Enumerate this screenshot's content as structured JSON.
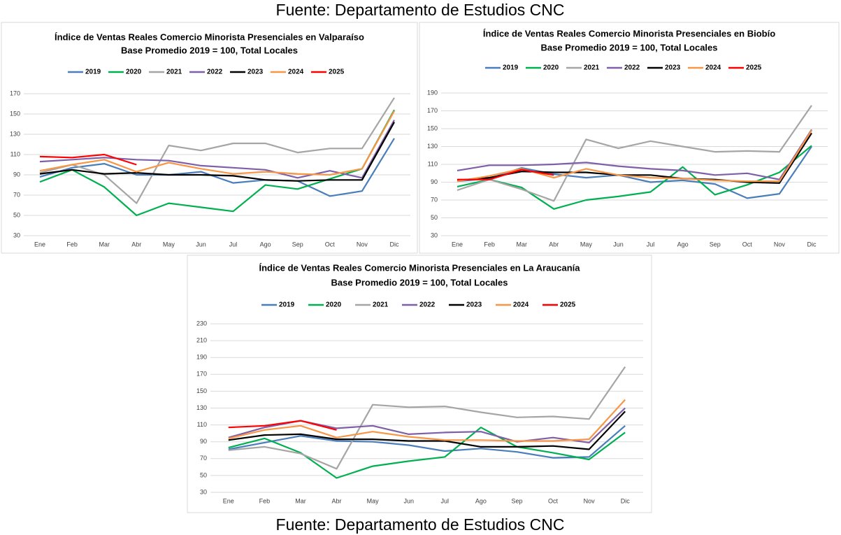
{
  "header": {
    "source": "Fuente: Departamento de Estudios CNC"
  },
  "footer": {
    "source": "Fuente: Departamento de Estudios CNC"
  },
  "chart_data": [
    {
      "type": "line",
      "title": "Índice de Ventas Reales Comercio Minorista Presenciales en Valparaíso",
      "subtitle": "Base Promedio 2019 = 100, Total Locales",
      "categories": [
        "Ene",
        "Feb",
        "Mar",
        "Abr",
        "May",
        "Jun",
        "Jul",
        "Ago",
        "Sep",
        "Oct",
        "Nov",
        "Dic"
      ],
      "ylim": [
        30,
        170
      ],
      "yticks": [
        30,
        50,
        70,
        90,
        110,
        130,
        150,
        170
      ],
      "grid": true,
      "legend": "top",
      "series": [
        {
          "name": "2019",
          "color": "#4a7ebb",
          "values": [
            88,
            97,
            101,
            90,
            90,
            93,
            82,
            85,
            84,
            69,
            74,
            126
          ]
        },
        {
          "name": "2020",
          "color": "#00b050",
          "values": [
            83,
            95,
            78,
            50,
            62,
            58,
            54,
            80,
            76,
            86,
            96,
            154
          ]
        },
        {
          "name": "2021",
          "color": "#a5a5a5",
          "values": [
            92,
            100,
            90,
            62,
            119,
            114,
            121,
            121,
            112,
            116,
            116,
            166
          ]
        },
        {
          "name": "2022",
          "color": "#7f5fa8",
          "values": [
            103,
            105,
            107,
            105,
            104,
            99,
            97,
            95,
            87,
            94,
            87,
            144
          ]
        },
        {
          "name": "2023",
          "color": "#000000",
          "values": [
            91,
            95,
            91,
            92,
            90,
            90,
            89,
            85,
            84,
            85,
            85,
            142
          ]
        },
        {
          "name": "2024",
          "color": "#f79646",
          "values": [
            94,
            100,
            105,
            93,
            102,
            96,
            91,
            93,
            91,
            90,
            96,
            153
          ]
        },
        {
          "name": "2025",
          "color": "#ff0000",
          "values": [
            108,
            107,
            110,
            100,
            null,
            null,
            null,
            null,
            null,
            null,
            null,
            null
          ]
        }
      ]
    },
    {
      "type": "line",
      "title": "Índice de Ventas Reales Comercio Minorista Presenciales en Biobío",
      "subtitle": "Base Promedio 2019 = 100, Total Locales",
      "categories": [
        "Ene",
        "Feb",
        "Mar",
        "Abr",
        "May",
        "Jun",
        "Jul",
        "Ago",
        "Sep",
        "Oct",
        "Nov",
        "Dic"
      ],
      "ylim": [
        30,
        190
      ],
      "yticks": [
        30,
        50,
        70,
        90,
        110,
        130,
        150,
        170,
        190
      ],
      "grid": true,
      "legend": "top",
      "series": [
        {
          "name": "2019",
          "color": "#4a7ebb",
          "values": [
            91,
            94,
            106,
            99,
            95,
            98,
            90,
            92,
            88,
            72,
            77,
            130
          ]
        },
        {
          "name": "2020",
          "color": "#00b050",
          "values": [
            85,
            93,
            84,
            60,
            70,
            74,
            79,
            107,
            76,
            87,
            101,
            131
          ]
        },
        {
          "name": "2021",
          "color": "#a5a5a5",
          "values": [
            81,
            93,
            82,
            69,
            138,
            128,
            136,
            130,
            124,
            125,
            124,
            176
          ]
        },
        {
          "name": "2022",
          "color": "#7f5fa8",
          "values": [
            103,
            109,
            109,
            110,
            112,
            108,
            105,
            103,
            98,
            100,
            93,
            149
          ]
        },
        {
          "name": "2023",
          "color": "#000000",
          "values": [
            92,
            95,
            102,
            101,
            101,
            98,
            98,
            94,
            93,
            90,
            89,
            145
          ]
        },
        {
          "name": "2024",
          "color": "#f79646",
          "values": [
            91,
            97,
            105,
            95,
            105,
            98,
            95,
            94,
            92,
            91,
            91,
            148
          ]
        },
        {
          "name": "2025",
          "color": "#ff0000",
          "values": [
            93,
            93,
            104,
            98,
            null,
            null,
            null,
            null,
            null,
            null,
            null,
            null
          ]
        }
      ]
    },
    {
      "type": "line",
      "title": "Índice de Ventas Reales Comercio Minorista Presenciales en La Araucanía",
      "subtitle": "Base Promedio 2019 = 100, Total Locales",
      "categories": [
        "Ene",
        "Feb",
        "Mar",
        "Abr",
        "May",
        "Jun",
        "Jul",
        "Ago",
        "Sep",
        "Oct",
        "Nov",
        "Dic"
      ],
      "ylim": [
        30,
        230
      ],
      "yticks": [
        30,
        50,
        70,
        90,
        110,
        130,
        150,
        170,
        190,
        210,
        230
      ],
      "grid": true,
      "legend": "top",
      "series": [
        {
          "name": "2019",
          "color": "#4a7ebb",
          "values": [
            81,
            89,
            97,
            91,
            90,
            86,
            79,
            82,
            78,
            71,
            72,
            109
          ]
        },
        {
          "name": "2020",
          "color": "#00b050",
          "values": [
            83,
            94,
            77,
            47,
            61,
            67,
            72,
            107,
            84,
            77,
            69,
            101
          ]
        },
        {
          "name": "2021",
          "color": "#a5a5a5",
          "values": [
            80,
            84,
            76,
            58,
            134,
            131,
            132,
            125,
            119,
            120,
            117,
            179
          ]
        },
        {
          "name": "2022",
          "color": "#7f5fa8",
          "values": [
            95,
            107,
            115,
            106,
            109,
            99,
            101,
            102,
            90,
            95,
            89,
            130
          ]
        },
        {
          "name": "2023",
          "color": "#000000",
          "values": [
            92,
            98,
            99,
            93,
            93,
            91,
            91,
            84,
            84,
            85,
            81,
            126
          ]
        },
        {
          "name": "2024",
          "color": "#f79646",
          "values": [
            94,
            104,
            109,
            95,
            102,
            96,
            92,
            92,
            91,
            91,
            93,
            140
          ]
        },
        {
          "name": "2025",
          "color": "#ff0000",
          "values": [
            107,
            109,
            115,
            104,
            null,
            null,
            null,
            null,
            null,
            null,
            null,
            null
          ]
        }
      ]
    }
  ]
}
